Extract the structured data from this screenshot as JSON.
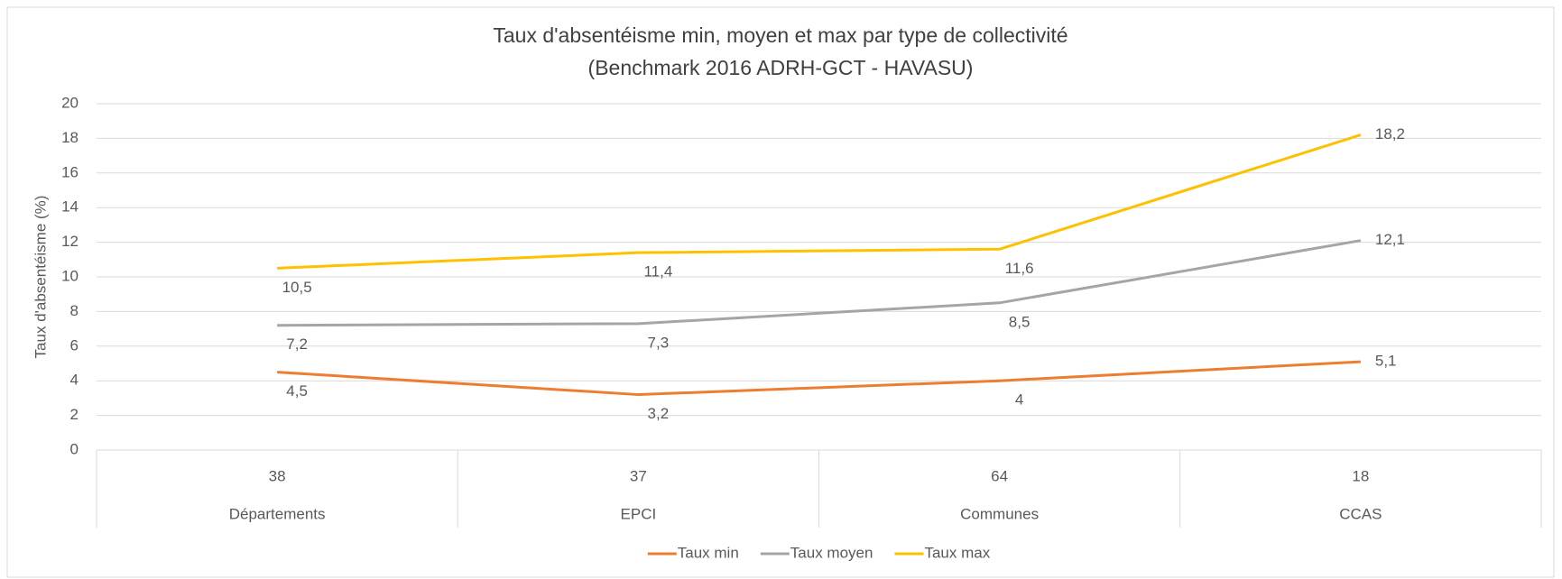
{
  "chart_data": {
    "type": "line",
    "title": "Taux d'absentéisme min, moyen et max par type de collectivité",
    "subtitle": "(Benchmark 2016 ADRH-GCT - HAVASU)",
    "y_label": "Taux d'absentéisme (%)",
    "categories": [
      "Départements",
      "EPCI",
      "Communes",
      "CCAS"
    ],
    "category_counts": [
      38,
      37,
      64,
      18
    ],
    "series": [
      {
        "name": "Taux min",
        "color": "#ED7D31",
        "values": [
          4.5,
          3.2,
          4,
          5.1
        ],
        "value_labels": [
          "4,5",
          "3,2",
          "4",
          "5,1"
        ]
      },
      {
        "name": "Taux moyen",
        "color": "#A5A5A5",
        "values": [
          7.2,
          7.3,
          8.5,
          12.1
        ],
        "value_labels": [
          "7,2",
          "7,3",
          "8,5",
          "12,1"
        ]
      },
      {
        "name": "Taux max",
        "color": "#FFC000",
        "values": [
          10.5,
          11.4,
          11.6,
          18.2
        ],
        "value_labels": [
          "10,5",
          "11,4",
          "11,6",
          "18,2"
        ]
      }
    ],
    "ylim": [
      0,
      20
    ],
    "yticks": [
      0,
      2,
      4,
      6,
      8,
      10,
      12,
      14,
      16,
      18,
      20
    ],
    "grid": true,
    "legend": "bottom"
  }
}
